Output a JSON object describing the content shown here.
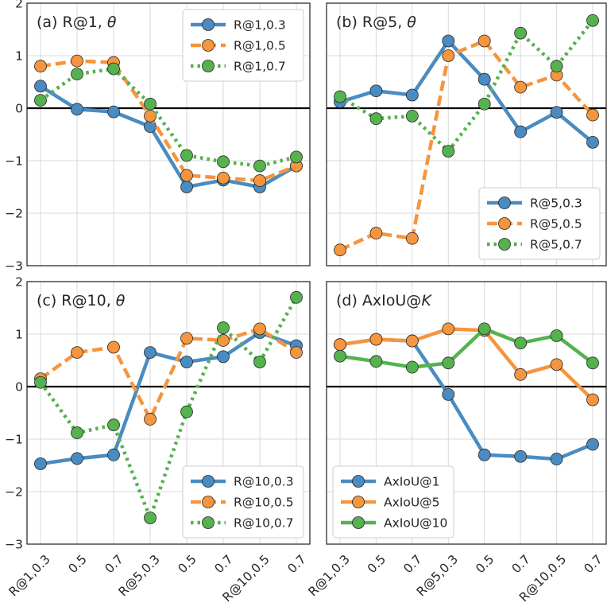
{
  "chart_data": [
    {
      "type": "line",
      "title": "(a) R@1, θ",
      "title_parts": [
        "(a) R@1, ",
        "θ"
      ],
      "ylim": [
        -3,
        2
      ],
      "yticks": [
        "−3",
        "−2",
        "−1",
        "0",
        "1",
        "2"
      ],
      "show_xlabels": false,
      "legend": "top-right",
      "series": [
        {
          "name": "R@1,0.3",
          "color": "#4a8cc1",
          "dash": "solid",
          "values": [
            0.42,
            -0.02,
            -0.07,
            -0.35,
            -1.5,
            -1.37,
            -1.5,
            -1.1
          ]
        },
        {
          "name": "R@1,0.5",
          "color": "#f5953d",
          "dash": "dashed",
          "values": [
            0.8,
            0.9,
            0.87,
            -0.15,
            -1.28,
            -1.33,
            -1.38,
            -1.1
          ]
        },
        {
          "name": "R@1,0.7",
          "color": "#55b24e",
          "dash": "dotted",
          "values": [
            0.15,
            0.65,
            0.75,
            0.08,
            -0.9,
            -1.02,
            -1.1,
            -0.93
          ]
        }
      ]
    },
    {
      "type": "line",
      "title": "(b) R@5, θ",
      "title_parts": [
        "(b) R@5, ",
        "θ"
      ],
      "ylim": [
        -3,
        2
      ],
      "yticks": [],
      "show_xlabels": false,
      "legend": "bottom-right",
      "series": [
        {
          "name": "R@5,0.3",
          "color": "#4a8cc1",
          "dash": "solid",
          "values": [
            0.12,
            0.33,
            0.25,
            1.28,
            0.55,
            -0.45,
            -0.08,
            -0.65
          ]
        },
        {
          "name": "R@5,0.5",
          "color": "#f5953d",
          "dash": "dashed",
          "values": [
            -2.7,
            -2.38,
            -2.48,
            1.0,
            1.28,
            0.4,
            0.63,
            -0.13
          ]
        },
        {
          "name": "R@5,0.7",
          "color": "#55b24e",
          "dash": "dotted",
          "values": [
            0.22,
            -0.2,
            -0.15,
            -0.82,
            0.08,
            1.43,
            0.8,
            1.67
          ]
        }
      ]
    },
    {
      "type": "line",
      "title": "(c) R@10, θ",
      "title_parts": [
        "(c) R@10, ",
        "θ"
      ],
      "ylim": [
        -3,
        2
      ],
      "yticks": [
        "−3",
        "−2",
        "−1",
        "0",
        "1",
        "2"
      ],
      "show_xlabels": true,
      "legend": "bottom-right",
      "series": [
        {
          "name": "R@10,0.3",
          "color": "#4a8cc1",
          "dash": "solid",
          "values": [
            -1.47,
            -1.37,
            -1.3,
            0.65,
            0.47,
            0.57,
            1.03,
            0.78
          ]
        },
        {
          "name": "R@10,0.5",
          "color": "#f5953d",
          "dash": "dashed",
          "values": [
            0.15,
            0.65,
            0.75,
            -0.62,
            0.92,
            0.88,
            1.1,
            0.65
          ]
        },
        {
          "name": "R@10,0.7",
          "color": "#55b24e",
          "dash": "dotted",
          "values": [
            0.08,
            -0.88,
            -0.73,
            -2.5,
            -0.48,
            1.12,
            0.47,
            1.7
          ]
        }
      ]
    },
    {
      "type": "line",
      "title": "(d) AxIoU@K",
      "title_parts": [
        "(d) AxIoU@",
        "K"
      ],
      "ylim": [
        -3,
        2
      ],
      "yticks": [],
      "show_xlabels": true,
      "legend": "bottom-left",
      "series": [
        {
          "name": "AxIoU@1",
          "color": "#4a8cc1",
          "dash": "solid",
          "values": [
            0.8,
            0.9,
            0.87,
            -0.15,
            -1.3,
            -1.33,
            -1.38,
            -1.1
          ]
        },
        {
          "name": "AxIoU@5",
          "color": "#f5953d",
          "dash": "solid",
          "values": [
            0.8,
            0.9,
            0.87,
            1.1,
            1.07,
            0.23,
            0.42,
            -0.25
          ]
        },
        {
          "name": "AxIoU@10",
          "color": "#55b24e",
          "dash": "solid",
          "values": [
            0.58,
            0.48,
            0.37,
            0.45,
            1.1,
            0.83,
            0.97,
            0.45
          ]
        }
      ]
    }
  ],
  "categories": [
    "R@1,0.3",
    "0.5",
    "0.7",
    "R@5,0.3",
    "0.5",
    "0.7",
    "R@10,0.5",
    "0.7"
  ]
}
